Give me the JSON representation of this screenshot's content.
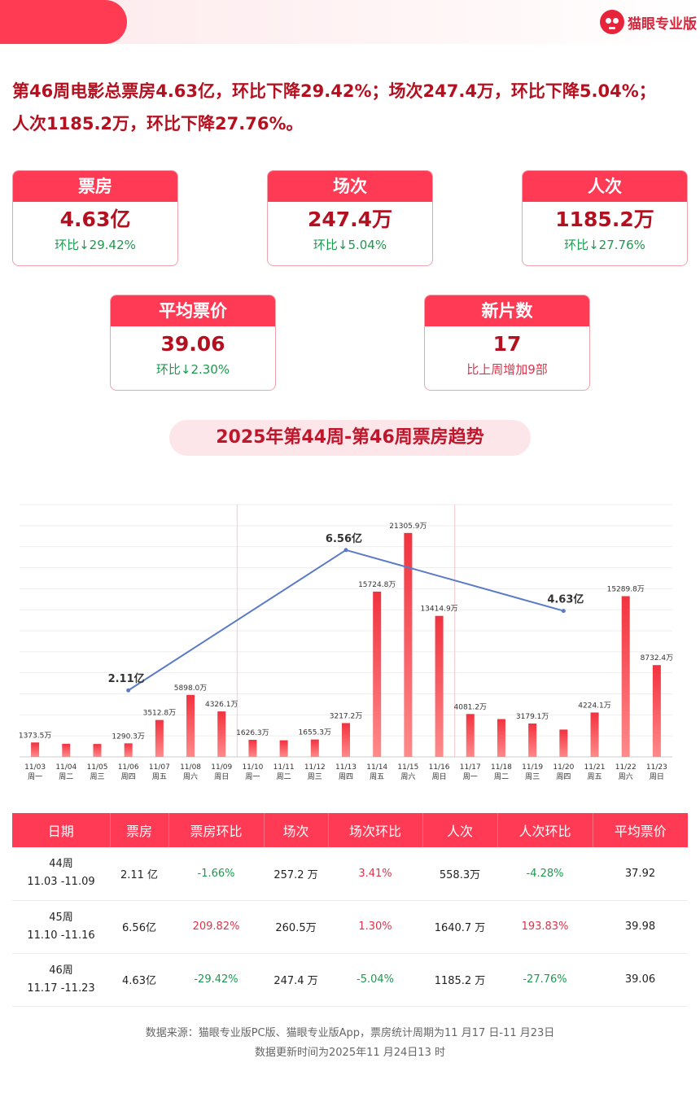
{
  "brand": {
    "name": "猫眼专业版"
  },
  "headline": "第46周电影总票房4.63亿，环比下降29.42%；场次247.4万，环比下降5.04%；人次1185.2万，环比下降27.76%。",
  "cards": [
    {
      "title": "票房",
      "value": "4.63亿",
      "sub": "环比↓29.42%"
    },
    {
      "title": "场次",
      "value": "247.4万",
      "sub": "环比↓5.04%"
    },
    {
      "title": "人次",
      "value": "1185.2万",
      "sub": "环比↓27.76%"
    },
    {
      "title": "平均票价",
      "value": "39.06",
      "sub": "环比↓2.30%"
    },
    {
      "title": "新片数",
      "value": "17",
      "sub": "比上周增加9部"
    }
  ],
  "trend_title": "2025年第44周-第46周票房趋势",
  "chart_data": {
    "type": "bar",
    "categories": [
      "11/03",
      "11/04",
      "11/05",
      "11/06",
      "11/07",
      "11/08",
      "11/09",
      "11/10",
      "11/11",
      "11/12",
      "11/13",
      "11/14",
      "11/15",
      "11/16",
      "11/17",
      "11/18",
      "11/19",
      "11/20",
      "11/21",
      "11/22",
      "11/23"
    ],
    "weekdays": [
      "周一",
      "周二",
      "周三",
      "周四",
      "周五",
      "周六",
      "周日",
      "周一",
      "周二",
      "周三",
      "周四",
      "周五",
      "周六",
      "周日",
      "周一",
      "周二",
      "周三",
      "周四",
      "周五",
      "周六",
      "周日"
    ],
    "values": [
      1373.5,
      1250,
      1230,
      1290.3,
      3512.8,
      5898.0,
      4326.1,
      1626.3,
      1580,
      1655.3,
      3217.2,
      15724.8,
      21305.9,
      13414.9,
      4081.2,
      3600,
      3179.1,
      2600,
      4224.1,
      15289.8,
      8732.4
    ],
    "bar_labels": [
      "1373.5万",
      "",
      "",
      "1290.3万",
      "3512.8万",
      "5898.0万",
      "4326.1万",
      "1626.3万",
      "",
      "1655.3万",
      "3217.2万",
      "15724.8万",
      "21305.9万",
      "13414.9万",
      "4081.2万",
      "",
      "3179.1万",
      "",
      "4224.1万",
      "15289.8万",
      "8732.4万"
    ],
    "unit": "万",
    "weekly_line": {
      "points": [
        {
          "x": "11/06",
          "y": 2.11,
          "label": "2.11亿"
        },
        {
          "x": "11/13",
          "y": 6.56,
          "label": "6.56亿"
        },
        {
          "x": "11/20",
          "y": 4.63,
          "label": "4.63亿"
        }
      ],
      "unit": "亿",
      "color": "#5b7bc8"
    },
    "week_separators_after": [
      "11/09",
      "11/16"
    ],
    "ylim": [
      0,
      24000
    ],
    "line_ylim": [
      0,
      8
    ],
    "grid": true,
    "bar_color": "#f2323f"
  },
  "table": {
    "headers": [
      "日期",
      "票房",
      "票房环比",
      "场次",
      "场次环比",
      "人次",
      "人次环比",
      "平均票价"
    ],
    "rows": [
      {
        "week": "44周",
        "range": "11.03 -11.09",
        "box": "2.11 亿",
        "box_chg": "-1.66%",
        "shows": "257.2 万",
        "shows_chg": "3.41%",
        "adm": "558.3万",
        "adm_chg": "-4.28%",
        "price": "37.92"
      },
      {
        "week": "45周",
        "range": "11.10 -11.16",
        "box": "6.56亿",
        "box_chg": "209.82%",
        "shows": "260.5万",
        "shows_chg": "1.30%",
        "adm": "1640.7 万",
        "adm_chg": "193.83%",
        "price": "39.98"
      },
      {
        "week": "46周",
        "range": "11.17 -11.23",
        "box": "4.63亿",
        "box_chg": "-29.42%",
        "shows": "247.4 万",
        "shows_chg": "-5.04%",
        "adm": "1185.2 万",
        "adm_chg": "-27.76%",
        "price": "39.06"
      }
    ]
  },
  "footer": {
    "line1": "数据来源：猫眼专业版PC版、猫眼专业版App，票房统计周期为11 月17 日-11 月23日",
    "line2": "数据更新时间为2025年11 月24日13 时"
  },
  "colors": {
    "accent": "#ff3a55",
    "dark_red": "#b5101f",
    "green": "#1b9a4e",
    "red": "#e0324a"
  }
}
